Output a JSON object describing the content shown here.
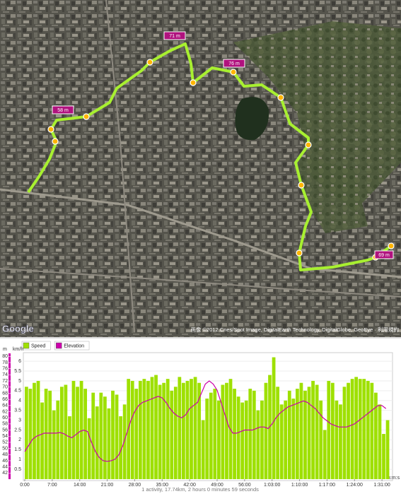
{
  "map": {
    "elevation_labels": [
      "58 m",
      "71 m",
      "76 m",
      "69 m"
    ],
    "copyright": "画像 ©2012 Cnes/Spot Image, DigitalEarth Technology, DigitalGlobe, GeoEye · 利用規約",
    "logo": "Google"
  },
  "chart_data": {
    "type": "bar",
    "x_label": "h:m:s",
    "y_label": "km/h",
    "y2_label": "m",
    "x": [
      0,
      60,
      120,
      180,
      240,
      300,
      360,
      420,
      480,
      540,
      600,
      660,
      720,
      780,
      840,
      900,
      960,
      1020,
      1080,
      1140,
      1200,
      1260,
      1320,
      1380,
      1440,
      1500,
      1560,
      1620,
      1680,
      1740,
      1800,
      1860,
      1920,
      1980,
      2040,
      2100,
      2160,
      2220,
      2280,
      2340,
      2400,
      2460,
      2520,
      2580,
      2640,
      2700,
      2760,
      2820,
      2880,
      2940,
      3000,
      3060,
      3120,
      3180,
      3240,
      3300,
      3360,
      3420,
      3480,
      3540,
      3600,
      3660,
      3720,
      3780,
      3840,
      3900,
      3960,
      4020,
      4080,
      4140,
      4200,
      4260,
      4320,
      4380,
      4440,
      4500,
      4560,
      4620,
      4680,
      4740,
      4800,
      4860,
      4920,
      4980,
      5040,
      5100,
      5160,
      5220,
      5280,
      5340,
      5400,
      5460,
      5520
    ],
    "series": [
      {
        "name": "Speed",
        "color": "#9ee000",
        "values": [
          4.7,
          4.6,
          4.9,
          5.0,
          3.9,
          4.6,
          4.5,
          3.5,
          4.0,
          4.7,
          4.8,
          3.2,
          5.0,
          4.7,
          5.0,
          4.6,
          3.1,
          4.4,
          3.7,
          4.4,
          4.2,
          3.6,
          4.5,
          4.3,
          3.2,
          3.8,
          5.1,
          5.0,
          4.6,
          5.0,
          5.1,
          5.0,
          5.2,
          5.3,
          4.8,
          4.9,
          5.1,
          4.5,
          4.7,
          5.2,
          4.9,
          5.0,
          5.1,
          5.2,
          4.9,
          3.0,
          4.1,
          4.4,
          4.6,
          4.0,
          4.8,
          4.9,
          5.1,
          4.6,
          4.2,
          3.9,
          4.0,
          4.6,
          4.5,
          3.5,
          4.0,
          4.9,
          5.3,
          6.2,
          4.7,
          3.8,
          4.0,
          4.5,
          4.1,
          4.6,
          4.9,
          4.5,
          4.7,
          5.0,
          4.8,
          4.0,
          2.5,
          5.0,
          4.9,
          4.0,
          3.8,
          4.7,
          4.9,
          5.1,
          5.2,
          5.1,
          5.1,
          5.0,
          4.9,
          4.4,
          3.8,
          2.3,
          3.0
        ]
      },
      {
        "name": "Elevation",
        "type": "line",
        "axis": "y2",
        "color": "#cc00aa",
        "values": [
          49,
          51,
          53,
          54,
          54.5,
          55,
          55,
          55,
          55,
          55.2,
          54.8,
          54,
          53.5,
          54.5,
          55.5,
          56,
          55.5,
          52,
          49,
          47,
          46,
          45.8,
          46,
          46.5,
          48,
          51,
          55,
          59,
          62,
          64,
          65,
          65.5,
          66,
          66.5,
          67,
          66.5,
          65,
          63,
          61.5,
          60.5,
          60,
          61,
          63,
          64,
          65,
          68,
          71,
          72,
          71,
          69,
          65,
          61,
          57,
          55,
          55,
          55.5,
          56,
          56,
          56,
          56.5,
          57,
          57,
          56.5,
          58,
          60,
          61.5,
          62.5,
          63.5,
          64,
          64.5,
          65,
          65.5,
          65,
          64,
          63,
          61.5,
          60,
          59,
          58,
          57.5,
          57,
          57,
          57,
          57.5,
          58,
          59,
          60,
          61,
          62,
          63,
          64,
          64,
          63
        ]
      }
    ],
    "xlim": [
      0,
      5610
    ],
    "xticks": [
      {
        "value": 0,
        "label": "0:00"
      },
      {
        "value": 420,
        "label": "7:00"
      },
      {
        "value": 840,
        "label": "14:00"
      },
      {
        "value": 1260,
        "label": "21:00"
      },
      {
        "value": 1680,
        "label": "28:00"
      },
      {
        "value": 2100,
        "label": "35:00"
      },
      {
        "value": 2520,
        "label": "42:00"
      },
      {
        "value": 2940,
        "label": "49:00"
      },
      {
        "value": 3360,
        "label": "56:00"
      },
      {
        "value": 3780,
        "label": "1:03:00"
      },
      {
        "value": 4200,
        "label": "1:10:00"
      },
      {
        "value": 4620,
        "label": "1:17:00"
      },
      {
        "value": 5040,
        "label": "1:24:00"
      },
      {
        "value": 5460,
        "label": "1:31:00"
      }
    ],
    "ylim": [
      0,
      6.4
    ],
    "yticks": [
      0.5,
      1,
      1.5,
      2,
      2.5,
      3,
      3.5,
      4,
      4.5,
      5,
      5.5,
      6
    ],
    "y2lim": [
      40,
      81
    ],
    "y2ticks": [
      42,
      44,
      46,
      48,
      50,
      52,
      54,
      56,
      58,
      60,
      62,
      64,
      66,
      68,
      70,
      72,
      74,
      76,
      78,
      80
    ],
    "grid": true
  },
  "footer": "1 activity, 17.74km, 2 hours 0 minutes 59 seconds"
}
